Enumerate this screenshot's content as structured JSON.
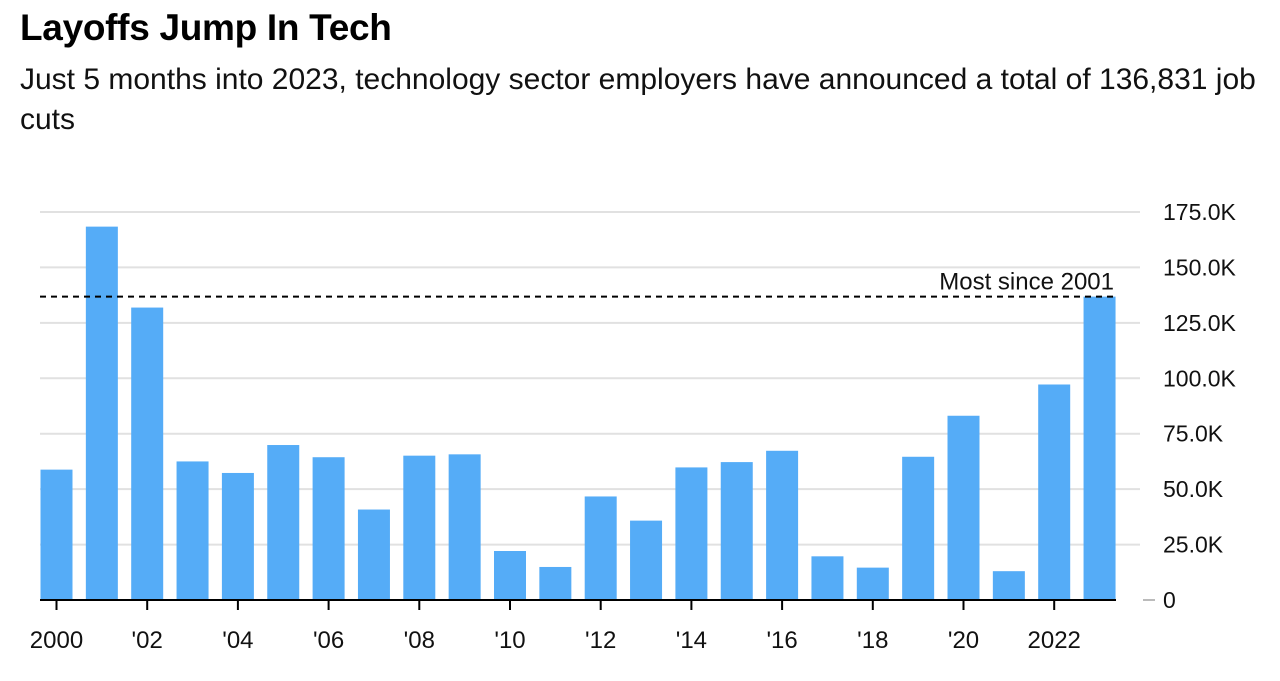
{
  "header": {
    "title": "Layoffs Jump In Tech",
    "subtitle": "Just 5 months into 2023, technology sector employers have announced a total of 136,831 job cuts"
  },
  "chart_data": {
    "type": "bar",
    "categories": [
      "2000",
      "2001",
      "2002",
      "2003",
      "2004",
      "2005",
      "2006",
      "2007",
      "2008",
      "2009",
      "2010",
      "2011",
      "2012",
      "2013",
      "2014",
      "2015",
      "2016",
      "2017",
      "2018",
      "2019",
      "2020",
      "2021",
      "2022",
      "2023"
    ],
    "x_tick_labels": [
      {
        "category": "2000",
        "label": "2000"
      },
      {
        "category": "2002",
        "label": "'02"
      },
      {
        "category": "2004",
        "label": "'04"
      },
      {
        "category": "2006",
        "label": "'06"
      },
      {
        "category": "2008",
        "label": "'08"
      },
      {
        "category": "2010",
        "label": "'10"
      },
      {
        "category": "2012",
        "label": "'12"
      },
      {
        "category": "2014",
        "label": "'14"
      },
      {
        "category": "2016",
        "label": "'16"
      },
      {
        "category": "2018",
        "label": "'18"
      },
      {
        "category": "2020",
        "label": "'20"
      },
      {
        "category": "2022",
        "label": "2022"
      }
    ],
    "values": [
      58800,
      168400,
      131900,
      62500,
      57300,
      69900,
      64400,
      40800,
      65100,
      65700,
      22100,
      14900,
      46700,
      35800,
      59800,
      62200,
      67300,
      19700,
      14600,
      64600,
      83100,
      13000,
      97200,
      136831
    ],
    "y_ticks": [
      0,
      25000,
      50000,
      75000,
      100000,
      125000,
      150000,
      175000
    ],
    "y_tick_labels": [
      "0",
      "25.0K",
      "50.0K",
      "75.0K",
      "100.0K",
      "125.0K",
      "150.0K",
      "175.0K"
    ],
    "ylim": [
      0,
      175000
    ],
    "y_axis_position": "right",
    "grid": true,
    "reference_line": {
      "value": 136831,
      "label": "Most since 2001",
      "style": "dashed"
    },
    "colors": {
      "bar": "#55acf7",
      "grid": "#e1e1e1",
      "baseline": "#000000",
      "reference": "#000000"
    }
  }
}
